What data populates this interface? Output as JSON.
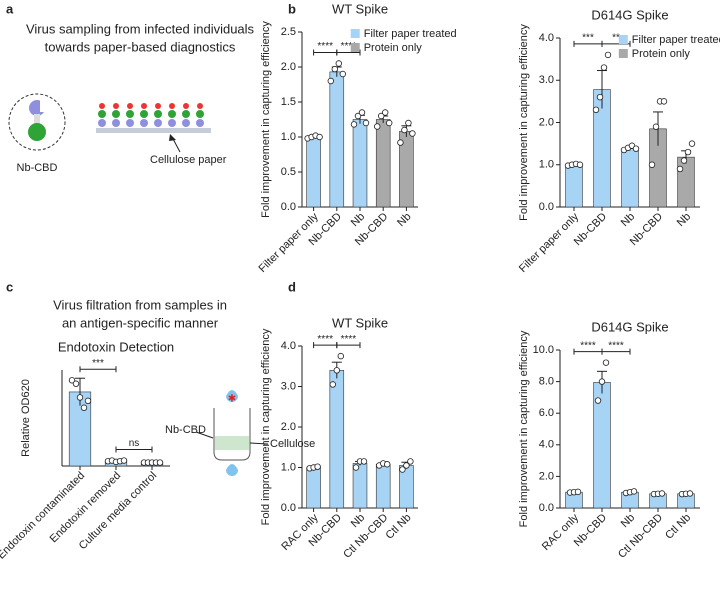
{
  "panels": {
    "a": {
      "letter": "a",
      "title": [
        "Virus sampling from infected individuals",
        "towards paper-based diagnostics"
      ],
      "molecule": "Nb-CBD",
      "paper": "Cellulose paper"
    },
    "b": {
      "letter": "b"
    },
    "c": {
      "letter": "c",
      "title": [
        "Virus filtration from samples in",
        "an antigen-specific manner"
      ],
      "molecule": "Nb-CBD",
      "filter": "Cellulose"
    },
    "d": {
      "letter": "d"
    }
  },
  "chart_data": [
    {
      "type": "bar",
      "title": "WT Spike",
      "y_label": "Fold improvement in capturing efficiency",
      "categories": [
        "Filter paper only",
        "Nb-CBD",
        "Nb",
        "Nb-CBD",
        "Nb"
      ],
      "series": [
        {
          "name": "Filter paper treated",
          "color": "#a7d3f5",
          "values": [
            1.0,
            1.93,
            1.25,
            null,
            null
          ],
          "errors": [
            0.02,
            0.07,
            0.06,
            null,
            null
          ],
          "points": [
            [
              0.98,
              1.0,
              1.02,
              1.0
            ],
            [
              1.8,
              1.97,
              2.05,
              1.9
            ],
            [
              1.18,
              1.3,
              1.35,
              1.2
            ],
            null,
            null
          ]
        },
        {
          "name": "Protein only",
          "color": "#a9a9a9",
          "values": [
            null,
            null,
            null,
            1.25,
            1.08
          ],
          "errors": [
            null,
            null,
            null,
            0.05,
            0.08
          ],
          "points": [
            null,
            null,
            null,
            [
              1.15,
              1.3,
              1.35,
              1.2
            ],
            [
              0.92,
              1.1,
              1.2,
              1.05
            ]
          ]
        }
      ],
      "ylim": [
        0,
        2.5
      ],
      "yticks": [
        {
          "value": 0,
          "label": "0.0"
        },
        0.5,
        {
          "value": 1,
          "label": "1.0"
        },
        1.5,
        {
          "value": 2,
          "label": "2.0"
        },
        2.5
      ],
      "significance": [
        "****",
        "****"
      ],
      "legend": "upper right"
    },
    {
      "type": "bar",
      "title": "D614G Spike",
      "y_label": "Fold improvement in capturing efficiency",
      "categories": [
        "Filter paper only",
        "Nb-CBD",
        "Nb",
        "Nb-CBD",
        "Nb"
      ],
      "series": [
        {
          "name": "Filter paper treated",
          "color": "#a7d3f5",
          "values": [
            1.0,
            2.78,
            1.38,
            null,
            null
          ],
          "errors": [
            0.02,
            0.45,
            0.04,
            null,
            null
          ],
          "points": [
            [
              0.98,
              1.0,
              1.02,
              1.0
            ],
            [
              2.3,
              2.6,
              3.3,
              3.6
            ],
            [
              1.35,
              1.4,
              1.45,
              1.38
            ],
            null,
            null
          ]
        },
        {
          "name": "Protein only",
          "color": "#a9a9a9",
          "values": [
            null,
            null,
            null,
            1.85,
            1.18
          ],
          "errors": [
            null,
            null,
            null,
            0.4,
            0.15
          ],
          "points": [
            null,
            null,
            null,
            [
              1.0,
              1.9,
              2.5,
              2.5
            ],
            [
              0.9,
              1.1,
              1.3,
              1.5
            ]
          ]
        }
      ],
      "ylim": [
        0,
        4
      ],
      "yticks": [
        {
          "value": 0,
          "label": "0.0"
        },
        {
          "value": 1,
          "label": "1.0"
        },
        {
          "value": 2,
          "label": "2.0"
        },
        {
          "value": 3,
          "label": "3.0"
        },
        {
          "value": 4,
          "label": "4.0"
        }
      ],
      "significance": [
        "***",
        "**"
      ],
      "legend": "upper right"
    },
    {
      "type": "bar",
      "title": "Endotoxin Detection",
      "y_label": "Relative OD620",
      "categories": [
        "Endotoxin contaminated",
        "Endotoxin removed",
        "Culture media control"
      ],
      "color": "#a7d3f5",
      "values": [
        1.08,
        0.07,
        0.05
      ],
      "errors": [
        0.2,
        0.01,
        0.005
      ],
      "points": [
        [
          1.25,
          1.2,
          1.0,
          0.85,
          0.95
        ],
        [
          0.07,
          0.08,
          0.06,
          0.07,
          0.08
        ],
        [
          0.05,
          0.05,
          0.05,
          0.05,
          0.05
        ]
      ],
      "ylim": [
        0,
        1.4
      ],
      "significance": [
        "***",
        "ns"
      ]
    },
    {
      "type": "bar",
      "title": "WT Spike",
      "y_label": "Fold improvement in capturing efficiency",
      "categories": [
        "RAC only",
        "Nb-CBD",
        "Nb",
        "Ctl Nb-CBD",
        "Ctl Nb"
      ],
      "color": "#a7d3f5",
      "values": [
        1.0,
        3.4,
        1.1,
        1.08,
        1.05
      ],
      "errors": [
        0.02,
        0.2,
        0.05,
        0.03,
        0.08
      ],
      "points": [
        [
          0.98,
          1.0,
          1.02
        ],
        [
          3.05,
          3.4,
          3.75
        ],
        [
          1.0,
          1.15,
          1.15
        ],
        [
          1.05,
          1.1,
          1.08
        ],
        [
          0.95,
          1.05,
          1.15
        ]
      ],
      "ylim": [
        0,
        4
      ],
      "yticks": [
        {
          "value": 0,
          "label": "0.0"
        },
        {
          "value": 1,
          "label": "1.0"
        },
        {
          "value": 2,
          "label": "2.0"
        },
        {
          "value": 3,
          "label": "3.0"
        },
        {
          "value": 4,
          "label": "4.0"
        }
      ],
      "significance": [
        "****",
        "****"
      ]
    },
    {
      "type": "bar",
      "title": "D614G Spike",
      "y_label": "Fold improvement in capturing efficiency",
      "categories": [
        "RAC only",
        "Nb-CBD",
        "Nb",
        "Ctl Nb-CBD",
        "Ctl Nb"
      ],
      "color": "#a7d3f5",
      "values": [
        1.0,
        7.95,
        1.0,
        0.9,
        0.9
      ],
      "errors": [
        0.03,
        0.7,
        0.03,
        0.02,
        0.02
      ],
      "points": [
        [
          0.98,
          1.0,
          1.02
        ],
        [
          6.8,
          8.0,
          9.2
        ],
        [
          0.95,
          1.0,
          1.05
        ],
        [
          0.88,
          0.9,
          0.92
        ],
        [
          0.88,
          0.9,
          0.92
        ]
      ],
      "ylim": [
        0,
        10
      ],
      "yticks": [
        {
          "value": 0,
          "label": "0.0"
        },
        {
          "value": 2,
          "label": "2.0"
        },
        {
          "value": 4,
          "label": "4.0"
        },
        {
          "value": 6,
          "label": "6.0"
        },
        {
          "value": 8,
          "label": "8.0"
        },
        {
          "value": 10,
          "label": "10.0"
        }
      ],
      "significance": [
        "****",
        "****"
      ]
    }
  ]
}
